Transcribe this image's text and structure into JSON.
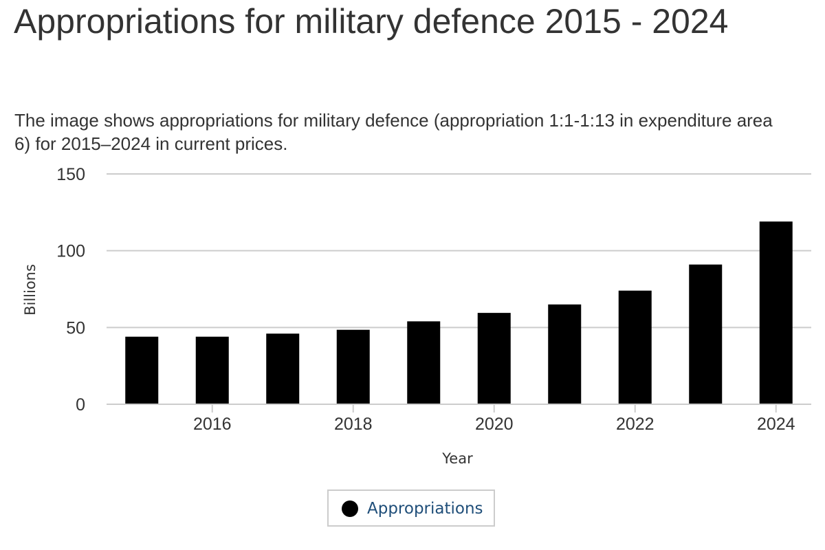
{
  "page": {
    "title": "Appropriations for military defence 2015 - 2024",
    "subtitle": "The image shows appropriations for military defence (appropriation 1:1-1:13 in expenditure area 6) for 2015–2024 in current prices."
  },
  "legend": {
    "label": "Appropriations",
    "color": "#000000"
  },
  "colors": {
    "bar": "#000000",
    "grid": "#cccccc",
    "text": "#333333",
    "legend_text": "#1f4e79"
  },
  "chart_data": {
    "type": "bar",
    "title": "Appropriations for military defence 2015 - 2024",
    "subtitle": "The image shows appropriations for military defence (appropriation 1:1-1:13 in expenditure area 6) for 2015–2024 in current prices.",
    "xlabel": "Year",
    "ylabel": "Billions",
    "x": [
      2015,
      2016,
      2017,
      2018,
      2019,
      2020,
      2021,
      2022,
      2023,
      2024
    ],
    "series": [
      {
        "name": "Appropriations",
        "values": [
          44,
          44,
          46,
          48.5,
          54,
          59.5,
          65,
          74,
          91,
          119
        ]
      }
    ],
    "ylim": [
      0,
      150
    ],
    "yticks": [
      0,
      50,
      100,
      150
    ],
    "xlim": [
      2014.5,
      2024.5
    ],
    "xticks": [
      2016,
      2018,
      2020,
      2022,
      2024
    ],
    "grid": true,
    "legend_position": "bottom-center"
  }
}
